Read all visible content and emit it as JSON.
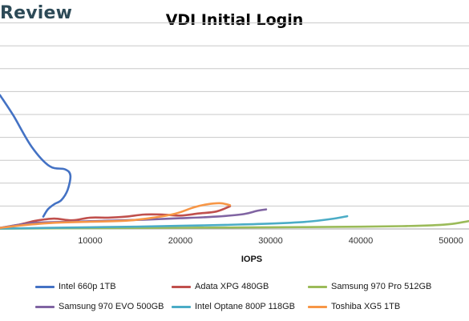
{
  "page": {
    "brand_text": "Review"
  },
  "chart_data": {
    "type": "line",
    "title": "VDI Initial Login",
    "xlabel": "IOPS",
    "ylabel": "",
    "xlim": [
      0,
      52000
    ],
    "ylim": [
      0,
      10
    ],
    "x_ticks": [
      10000,
      20000,
      30000,
      40000,
      50000
    ],
    "grid": true,
    "legend_position": "bottom",
    "series": [
      {
        "name": "Intel 660p 1TB",
        "color": "#4472C4",
        "points": [
          [
            0,
            6.5
          ],
          [
            1500,
            5.5
          ],
          [
            3500,
            4
          ],
          [
            5500,
            3.05
          ],
          [
            7200,
            2.9
          ],
          [
            7800,
            2.6
          ],
          [
            7500,
            1.9
          ],
          [
            6800,
            1.4
          ],
          [
            6000,
            1.2
          ],
          [
            5300,
            0.95
          ],
          [
            4800,
            0.6
          ]
        ]
      },
      {
        "name": "Adata XPG 480GB",
        "color": "#C0504D",
        "points": [
          [
            0,
            0.05
          ],
          [
            1000,
            0.12
          ],
          [
            2500,
            0.25
          ],
          [
            4000,
            0.4
          ],
          [
            6000,
            0.5
          ],
          [
            8000,
            0.42
          ],
          [
            10000,
            0.55
          ],
          [
            12000,
            0.55
          ],
          [
            14000,
            0.6
          ],
          [
            16000,
            0.7
          ],
          [
            18000,
            0.7
          ],
          [
            20000,
            0.65
          ],
          [
            22000,
            0.75
          ],
          [
            24000,
            0.85
          ],
          [
            25500,
            1.1
          ]
        ]
      },
      {
        "name": "Samsung 970 Pro 512GB",
        "color": "#9BBB59",
        "points": [
          [
            0,
            0.01
          ],
          [
            10000,
            0.04
          ],
          [
            20000,
            0.06
          ],
          [
            30000,
            0.08
          ],
          [
            40000,
            0.11
          ],
          [
            45000,
            0.14
          ],
          [
            48000,
            0.18
          ],
          [
            50000,
            0.24
          ],
          [
            52000,
            0.38
          ]
        ]
      },
      {
        "name": "Samsung 970 EVO 500GB",
        "color": "#8064A2",
        "points": [
          [
            0,
            0.05
          ],
          [
            2000,
            0.2
          ],
          [
            4000,
            0.3
          ],
          [
            8000,
            0.35
          ],
          [
            12000,
            0.4
          ],
          [
            16000,
            0.45
          ],
          [
            20000,
            0.52
          ],
          [
            24000,
            0.6
          ],
          [
            27000,
            0.72
          ],
          [
            28500,
            0.88
          ],
          [
            29500,
            0.95
          ]
        ]
      },
      {
        "name": "Intel Optane 800P 118GB",
        "color": "#4BACC6",
        "points": [
          [
            0,
            0.02
          ],
          [
            5000,
            0.05
          ],
          [
            10000,
            0.08
          ],
          [
            15000,
            0.11
          ],
          [
            20000,
            0.15
          ],
          [
            25000,
            0.2
          ],
          [
            30000,
            0.26
          ],
          [
            34000,
            0.35
          ],
          [
            37000,
            0.5
          ],
          [
            38500,
            0.62
          ]
        ]
      },
      {
        "name": "Toshiba XG5 1TB",
        "color": "#F79646",
        "points": [
          [
            0,
            0.05
          ],
          [
            2500,
            0.18
          ],
          [
            6000,
            0.3
          ],
          [
            10000,
            0.35
          ],
          [
            14000,
            0.4
          ],
          [
            17000,
            0.55
          ],
          [
            19500,
            0.75
          ],
          [
            21500,
            1.05
          ],
          [
            23000,
            1.2
          ],
          [
            24500,
            1.25
          ],
          [
            25500,
            1.15
          ]
        ]
      }
    ]
  }
}
